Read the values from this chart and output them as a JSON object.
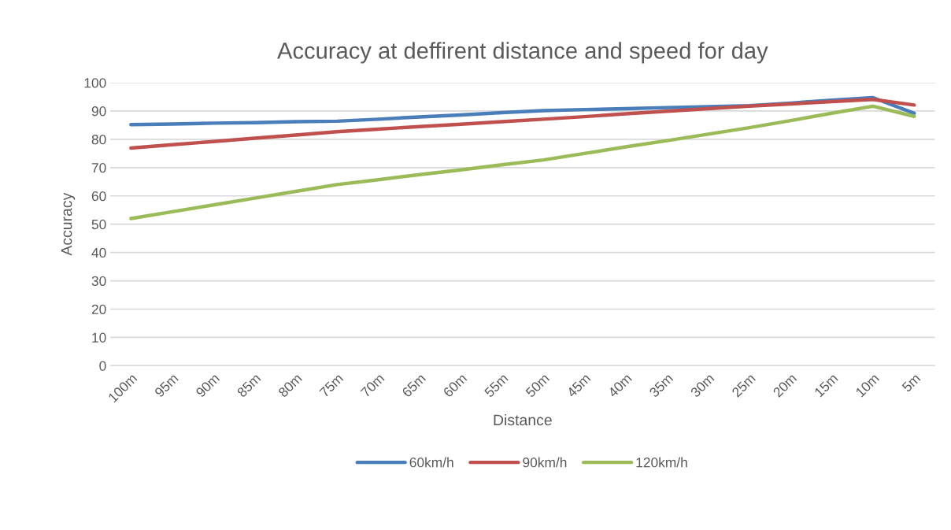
{
  "chart_data": {
    "type": "line",
    "title": "Accuracy at deffirent distance and speed for day",
    "xlabel": "Distance",
    "ylabel": "Accuracy",
    "categories": [
      "100m",
      "95m",
      "90m",
      "85m",
      "80m",
      "75m",
      "70m",
      "65m",
      "60m",
      "55m",
      "50m",
      "45m",
      "40m",
      "35m",
      "30m",
      "25m",
      "20m",
      "15m",
      "10m",
      "5m"
    ],
    "series": [
      {
        "name": "60km/h",
        "color": "#4a7ebb",
        "values": [
          85.2,
          85.4,
          85.7,
          85.9,
          86.2,
          86.4,
          87.1,
          87.9,
          88.6,
          89.4,
          90.1,
          90.5,
          90.8,
          91.2,
          91.5,
          91.9,
          92.8,
          93.8,
          94.7,
          89.2
        ]
      },
      {
        "name": "90km/h",
        "color": "#c0504d",
        "values": [
          76.9,
          78.1,
          79.2,
          80.4,
          81.5,
          82.7,
          83.6,
          84.5,
          85.3,
          86.2,
          87.1,
          88.0,
          89.0,
          89.9,
          90.8,
          91.7,
          92.5,
          93.3,
          94.1,
          92.1
        ]
      },
      {
        "name": "120km/h",
        "color": "#9bbb59",
        "values": [
          52.0,
          54.4,
          56.8,
          59.2,
          61.6,
          64.0,
          65.7,
          67.5,
          69.2,
          71.0,
          72.7,
          75.0,
          77.3,
          79.5,
          81.8,
          84.1,
          86.6,
          89.2,
          91.7,
          88.1
        ]
      }
    ],
    "ylim": [
      0,
      100
    ],
    "yticks": [
      0,
      10,
      20,
      30,
      40,
      50,
      60,
      70,
      80,
      90,
      100
    ],
    "grid": "y",
    "legend": "bottom",
    "marker": "none",
    "line_style": "solid"
  }
}
